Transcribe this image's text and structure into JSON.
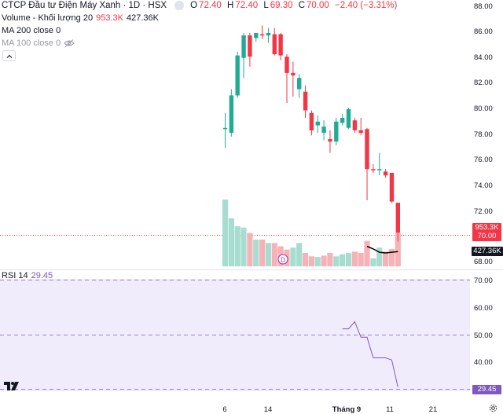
{
  "header": {
    "symbol_title": "CTCP Đầu tư Điện Máy Xanh · 1D · HSX",
    "ohlc": {
      "o_label": "O",
      "o": "72.40",
      "h_label": "H",
      "h": "72.40",
      "l_label": "L",
      "l": "69.30",
      "c_label": "C",
      "c": "70.00",
      "change": "−2.40 (−3.31%)"
    }
  },
  "indicators": {
    "volume": {
      "label": "Volume - Khối lượng 20",
      "value1": "953.3K",
      "value2": "427.36K"
    },
    "ma200": {
      "label": "MA 200 close 0"
    },
    "ma100": {
      "label": "MA 100 close 0"
    },
    "rsi": {
      "label": "RSI 14",
      "value": "29.45"
    }
  },
  "price_axis": {
    "ticks": [
      "88.00",
      "86.00",
      "84.00",
      "82.00",
      "80.00",
      "78.00",
      "76.00",
      "74.00",
      "72.00",
      "68.00"
    ],
    "tags": {
      "volume_high": "953.3K",
      "last_price": "70.00",
      "volume_ma": "427.36K"
    }
  },
  "rsi_axis": {
    "ticks": [
      "70.00",
      "60.00",
      "50.00",
      "40.00"
    ],
    "tag": "29.45"
  },
  "time_axis": {
    "ticks": [
      "6",
      "14",
      "Tháng 9",
      "11",
      "21"
    ]
  },
  "colors": {
    "up": "#22ab94",
    "down": "#f23645",
    "up_volume": "#a7dcd1",
    "down_volume": "#f7b2b7",
    "rsi_line": "#7e57c2",
    "rsi_band": "#f1ecfb"
  },
  "marker": {
    "dividend_letter": "D"
  },
  "chart_data": {
    "type": "candlestick",
    "price_range": [
      67.5,
      88.2
    ],
    "candles": [
      {
        "o": 78.3,
        "h": 79.6,
        "l": 76.8,
        "c": 78.4
      },
      {
        "o": 78.0,
        "h": 81.5,
        "l": 77.7,
        "c": 81.0
      },
      {
        "o": 81.0,
        "h": 84.5,
        "l": 80.8,
        "c": 84.2
      },
      {
        "o": 84.0,
        "h": 86.0,
        "l": 82.4,
        "c": 85.8
      },
      {
        "o": 85.8,
        "h": 86.0,
        "l": 83.3,
        "c": 84.1
      },
      {
        "o": 85.6,
        "h": 86.0,
        "l": 85.3,
        "c": 86.0
      },
      {
        "o": 85.9,
        "h": 86.6,
        "l": 85.5,
        "c": 85.8
      },
      {
        "o": 85.8,
        "h": 86.4,
        "l": 85.2,
        "c": 86.0
      },
      {
        "o": 85.9,
        "h": 86.4,
        "l": 84.2,
        "c": 84.3
      },
      {
        "o": 85.9,
        "h": 86.0,
        "l": 83.8,
        "c": 84.2
      },
      {
        "o": 84.1,
        "h": 84.3,
        "l": 80.4,
        "c": 82.8
      },
      {
        "o": 82.8,
        "h": 83.7,
        "l": 80.9,
        "c": 82.6
      },
      {
        "o": 81.5,
        "h": 82.7,
        "l": 80.8,
        "c": 82.4
      },
      {
        "o": 81.3,
        "h": 81.8,
        "l": 79.2,
        "c": 79.8
      },
      {
        "o": 79.6,
        "h": 79.8,
        "l": 77.8,
        "c": 78.2
      },
      {
        "o": 78.6,
        "h": 79.4,
        "l": 78.0,
        "c": 78.9
      },
      {
        "o": 78.0,
        "h": 79.0,
        "l": 77.4,
        "c": 78.5
      },
      {
        "o": 77.5,
        "h": 78.2,
        "l": 76.4,
        "c": 77.3
      },
      {
        "o": 77.3,
        "h": 79.2,
        "l": 77.0,
        "c": 78.9
      },
      {
        "o": 78.8,
        "h": 79.5,
        "l": 78.6,
        "c": 79.2
      },
      {
        "o": 78.4,
        "h": 80.0,
        "l": 78.3,
        "c": 79.9
      },
      {
        "o": 79.0,
        "h": 79.2,
        "l": 78.0,
        "c": 78.2
      },
      {
        "o": 78.2,
        "h": 79.2,
        "l": 77.8,
        "c": 78.0
      },
      {
        "o": 78.3,
        "h": 78.4,
        "l": 72.6,
        "c": 75.1
      },
      {
        "o": 75.1,
        "h": 75.5,
        "l": 74.8,
        "c": 75.0
      },
      {
        "o": 75.0,
        "h": 76.4,
        "l": 74.6,
        "c": 75.1
      },
      {
        "o": 74.9,
        "h": 75.1,
        "l": 74.4,
        "c": 74.6
      },
      {
        "o": 74.8,
        "h": 74.8,
        "l": 72.4,
        "c": 72.5
      },
      {
        "o": 72.4,
        "h": 72.4,
        "l": 69.3,
        "c": 70.0
      }
    ],
    "volume_up": [
      true,
      true,
      true,
      true,
      false,
      true,
      false,
      true,
      false,
      false,
      false,
      true,
      true,
      false,
      false,
      true,
      false,
      false,
      true,
      true,
      true,
      false,
      false,
      false,
      true,
      true,
      false,
      false,
      false
    ],
    "volume_rel": [
      1.0,
      0.72,
      0.6,
      0.58,
      0.5,
      0.4,
      0.4,
      0.35,
      0.35,
      0.3,
      0.25,
      0.28,
      0.35,
      0.2,
      0.15,
      0.14,
      0.16,
      0.2,
      0.15,
      0.18,
      0.2,
      0.22,
      0.2,
      0.38,
      0.12,
      0.28,
      0.22,
      0.26,
      0.5
    ],
    "volume_ma_rel": [
      0.3,
      0.26,
      0.21,
      0.2,
      0.21,
      0.22
    ],
    "rsi_range": [
      27.5,
      72.8
    ],
    "rsi": [
      51.5,
      51.5,
      54.2,
      48.3,
      48.3,
      40.5,
      40.5,
      40.5,
      39.7,
      29.4
    ]
  }
}
